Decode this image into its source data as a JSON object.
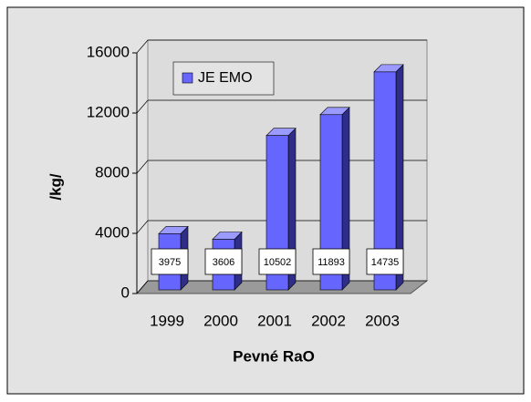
{
  "chart_data": {
    "type": "bar3d",
    "categories": [
      "1999",
      "2000",
      "2001",
      "2002",
      "2003"
    ],
    "series": [
      {
        "name": "JE EMO",
        "color": "#6666ff",
        "values": [
          3975,
          3606,
          10502,
          11893,
          14735
        ]
      }
    ],
    "ylim": [
      0,
      16000
    ],
    "yticks": [
      0,
      4000,
      8000,
      12000,
      16000
    ],
    "ylabel": "/kg/",
    "xlabel": "Pevné RaO",
    "grid": true,
    "legend": "top-left"
  }
}
